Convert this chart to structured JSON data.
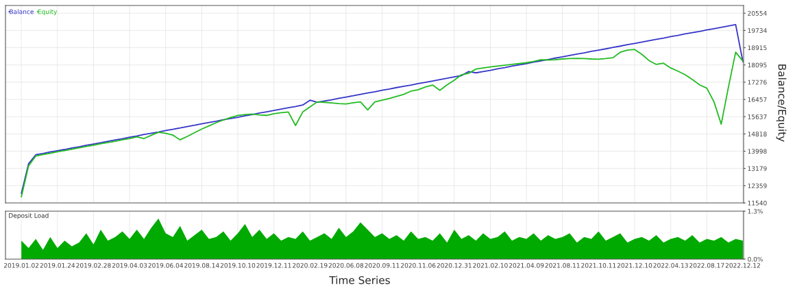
{
  "chart_data": [
    {
      "type": "line",
      "ylabel": "Balance/Equity",
      "legend": "top left",
      "grid": true,
      "tick_labels": "y",
      "categories": [
        "2019.01.02",
        null,
        null,
        null,
        null,
        "2019.01.24",
        null,
        null,
        null,
        null,
        "2019.02.28",
        null,
        null,
        null,
        null,
        "2019.04.03",
        null,
        null,
        null,
        null,
        "2019.06.04",
        null,
        null,
        null,
        null,
        "2019.08.14",
        null,
        null,
        null,
        null,
        "2019.10.10",
        null,
        null,
        null,
        null,
        "2019.12.11",
        null,
        null,
        null,
        null,
        "2020.02.19",
        null,
        null,
        null,
        null,
        "2020.06.08",
        null,
        null,
        null,
        null,
        "2020.09.11",
        null,
        null,
        null,
        null,
        "2020.11.06",
        null,
        null,
        null,
        null,
        "2020.12.31",
        null,
        null,
        null,
        null,
        "2021.02.10",
        null,
        null,
        null,
        null,
        "2021.04.09",
        null,
        null,
        null,
        null,
        "2021.08.11",
        null,
        null,
        null,
        null,
        "2021.10.11",
        null,
        null,
        null,
        null,
        "2021.12.10",
        null,
        null,
        null,
        null,
        "2022.04.13",
        null,
        null,
        null,
        null,
        "2022.08.17",
        null,
        null,
        null,
        null,
        "2022.12.12"
      ],
      "ylim": [
        11540,
        20920
      ],
      "yticks": [
        11540,
        12359,
        13179,
        13998,
        14818,
        15637,
        16457,
        17276,
        18095,
        18915,
        19734,
        20554
      ],
      "series": [
        {
          "name": "Balance",
          "color": "#3535c8",
          "values": [
            11990,
            13400,
            13830,
            13890,
            13960,
            14020,
            14080,
            14150,
            14210,
            14280,
            14340,
            14400,
            14470,
            14530,
            14590,
            14660,
            14720,
            14790,
            14850,
            14910,
            14980,
            15040,
            15100,
            15170,
            15230,
            15300,
            15360,
            15420,
            15490,
            15550,
            15610,
            15680,
            15740,
            15810,
            15870,
            15930,
            16000,
            16060,
            16120,
            16190,
            16420,
            16320,
            16380,
            16440,
            16510,
            16570,
            16630,
            16700,
            16760,
            16820,
            16890,
            16950,
            17020,
            17080,
            17140,
            17210,
            17270,
            17330,
            17400,
            17460,
            17530,
            17590,
            17780,
            17720,
            17780,
            17840,
            17910,
            17970,
            18040,
            18100,
            18160,
            18230,
            18290,
            18350,
            18420,
            18480,
            18550,
            18610,
            18670,
            18740,
            18800,
            18860,
            18930,
            18990,
            19060,
            19120,
            19180,
            19250,
            19310,
            19370,
            19440,
            19500,
            19570,
            19630,
            19690,
            19760,
            19820,
            19880,
            19950,
            20010,
            18250
          ]
        },
        {
          "name": "Equity",
          "color": "#22bb22",
          "values": [
            11830,
            13300,
            13770,
            13840,
            13900,
            13970,
            14030,
            14090,
            14160,
            14220,
            14280,
            14350,
            14410,
            14470,
            14540,
            14600,
            14680,
            14600,
            14750,
            14900,
            14850,
            14760,
            14540,
            14700,
            14880,
            15050,
            15200,
            15350,
            15480,
            15600,
            15700,
            15740,
            15760,
            15720,
            15700,
            15780,
            15830,
            15860,
            15220,
            15860,
            16100,
            16340,
            16320,
            16290,
            16260,
            16240,
            16300,
            16340,
            15960,
            16340,
            16420,
            16500,
            16600,
            16700,
            16850,
            16920,
            17050,
            17140,
            16890,
            17150,
            17370,
            17630,
            17700,
            17900,
            17950,
            18000,
            18040,
            18080,
            18120,
            18160,
            18200,
            18260,
            18340,
            18330,
            18340,
            18380,
            18400,
            18410,
            18400,
            18380,
            18370,
            18400,
            18440,
            18700,
            18800,
            18830,
            18600,
            18300,
            18120,
            18180,
            17950,
            17800,
            17630,
            17400,
            17150,
            16990,
            16340,
            15280,
            17050,
            18700,
            18280
          ]
        }
      ]
    },
    {
      "type": "area",
      "title": "Deposit Load",
      "xlabel": "Time Series",
      "grid": true,
      "color": "#00aa00",
      "categories": [
        "2019.01.02",
        null,
        null,
        null,
        null,
        "2019.01.24",
        null,
        null,
        null,
        null,
        "2019.02.28",
        null,
        null,
        null,
        null,
        "2019.04.03",
        null,
        null,
        null,
        null,
        "2019.06.04",
        null,
        null,
        null,
        null,
        "2019.08.14",
        null,
        null,
        null,
        null,
        "2019.10.10",
        null,
        null,
        null,
        null,
        "2019.12.11",
        null,
        null,
        null,
        null,
        "2020.02.19",
        null,
        null,
        null,
        null,
        "2020.06.08",
        null,
        null,
        null,
        null,
        "2020.09.11",
        null,
        null,
        null,
        null,
        "2020.11.06",
        null,
        null,
        null,
        null,
        "2020.12.31",
        null,
        null,
        null,
        null,
        "2021.02.10",
        null,
        null,
        null,
        null,
        "2021.04.09",
        null,
        null,
        null,
        null,
        "2021.08.11",
        null,
        null,
        null,
        null,
        "2021.10.11",
        null,
        null,
        null,
        null,
        "2021.12.10",
        null,
        null,
        null,
        null,
        "2022.04.13",
        null,
        null,
        null,
        null,
        "2022.08.17",
        null,
        null,
        null,
        null,
        "2022.12.12"
      ],
      "ylim": [
        0,
        1.3
      ],
      "yticks": [
        {
          "value": 0,
          "label": "0.0%"
        },
        {
          "value": 1.3,
          "label": "1.3%"
        }
      ],
      "values": [
        0.5,
        0.3,
        0.55,
        0.25,
        0.6,
        0.3,
        0.5,
        0.35,
        0.45,
        0.7,
        0.4,
        0.8,
        0.5,
        0.6,
        0.75,
        0.55,
        0.8,
        0.55,
        0.85,
        1.1,
        0.7,
        0.6,
        0.9,
        0.5,
        0.65,
        0.8,
        0.55,
        0.6,
        0.75,
        0.5,
        0.7,
        0.95,
        0.6,
        0.8,
        0.55,
        0.7,
        0.5,
        0.6,
        0.55,
        0.75,
        0.5,
        0.6,
        0.7,
        0.55,
        0.85,
        0.6,
        0.75,
        1.0,
        0.8,
        0.6,
        0.7,
        0.55,
        0.65,
        0.5,
        0.75,
        0.55,
        0.6,
        0.5,
        0.7,
        0.45,
        0.8,
        0.55,
        0.65,
        0.5,
        0.7,
        0.55,
        0.6,
        0.75,
        0.5,
        0.6,
        0.55,
        0.7,
        0.5,
        0.65,
        0.55,
        0.6,
        0.7,
        0.45,
        0.6,
        0.55,
        0.75,
        0.5,
        0.6,
        0.7,
        0.45,
        0.55,
        0.6,
        0.5,
        0.65,
        0.45,
        0.55,
        0.6,
        0.5,
        0.65,
        0.45,
        0.55,
        0.5,
        0.6,
        0.45,
        0.55,
        0.5
      ]
    }
  ]
}
